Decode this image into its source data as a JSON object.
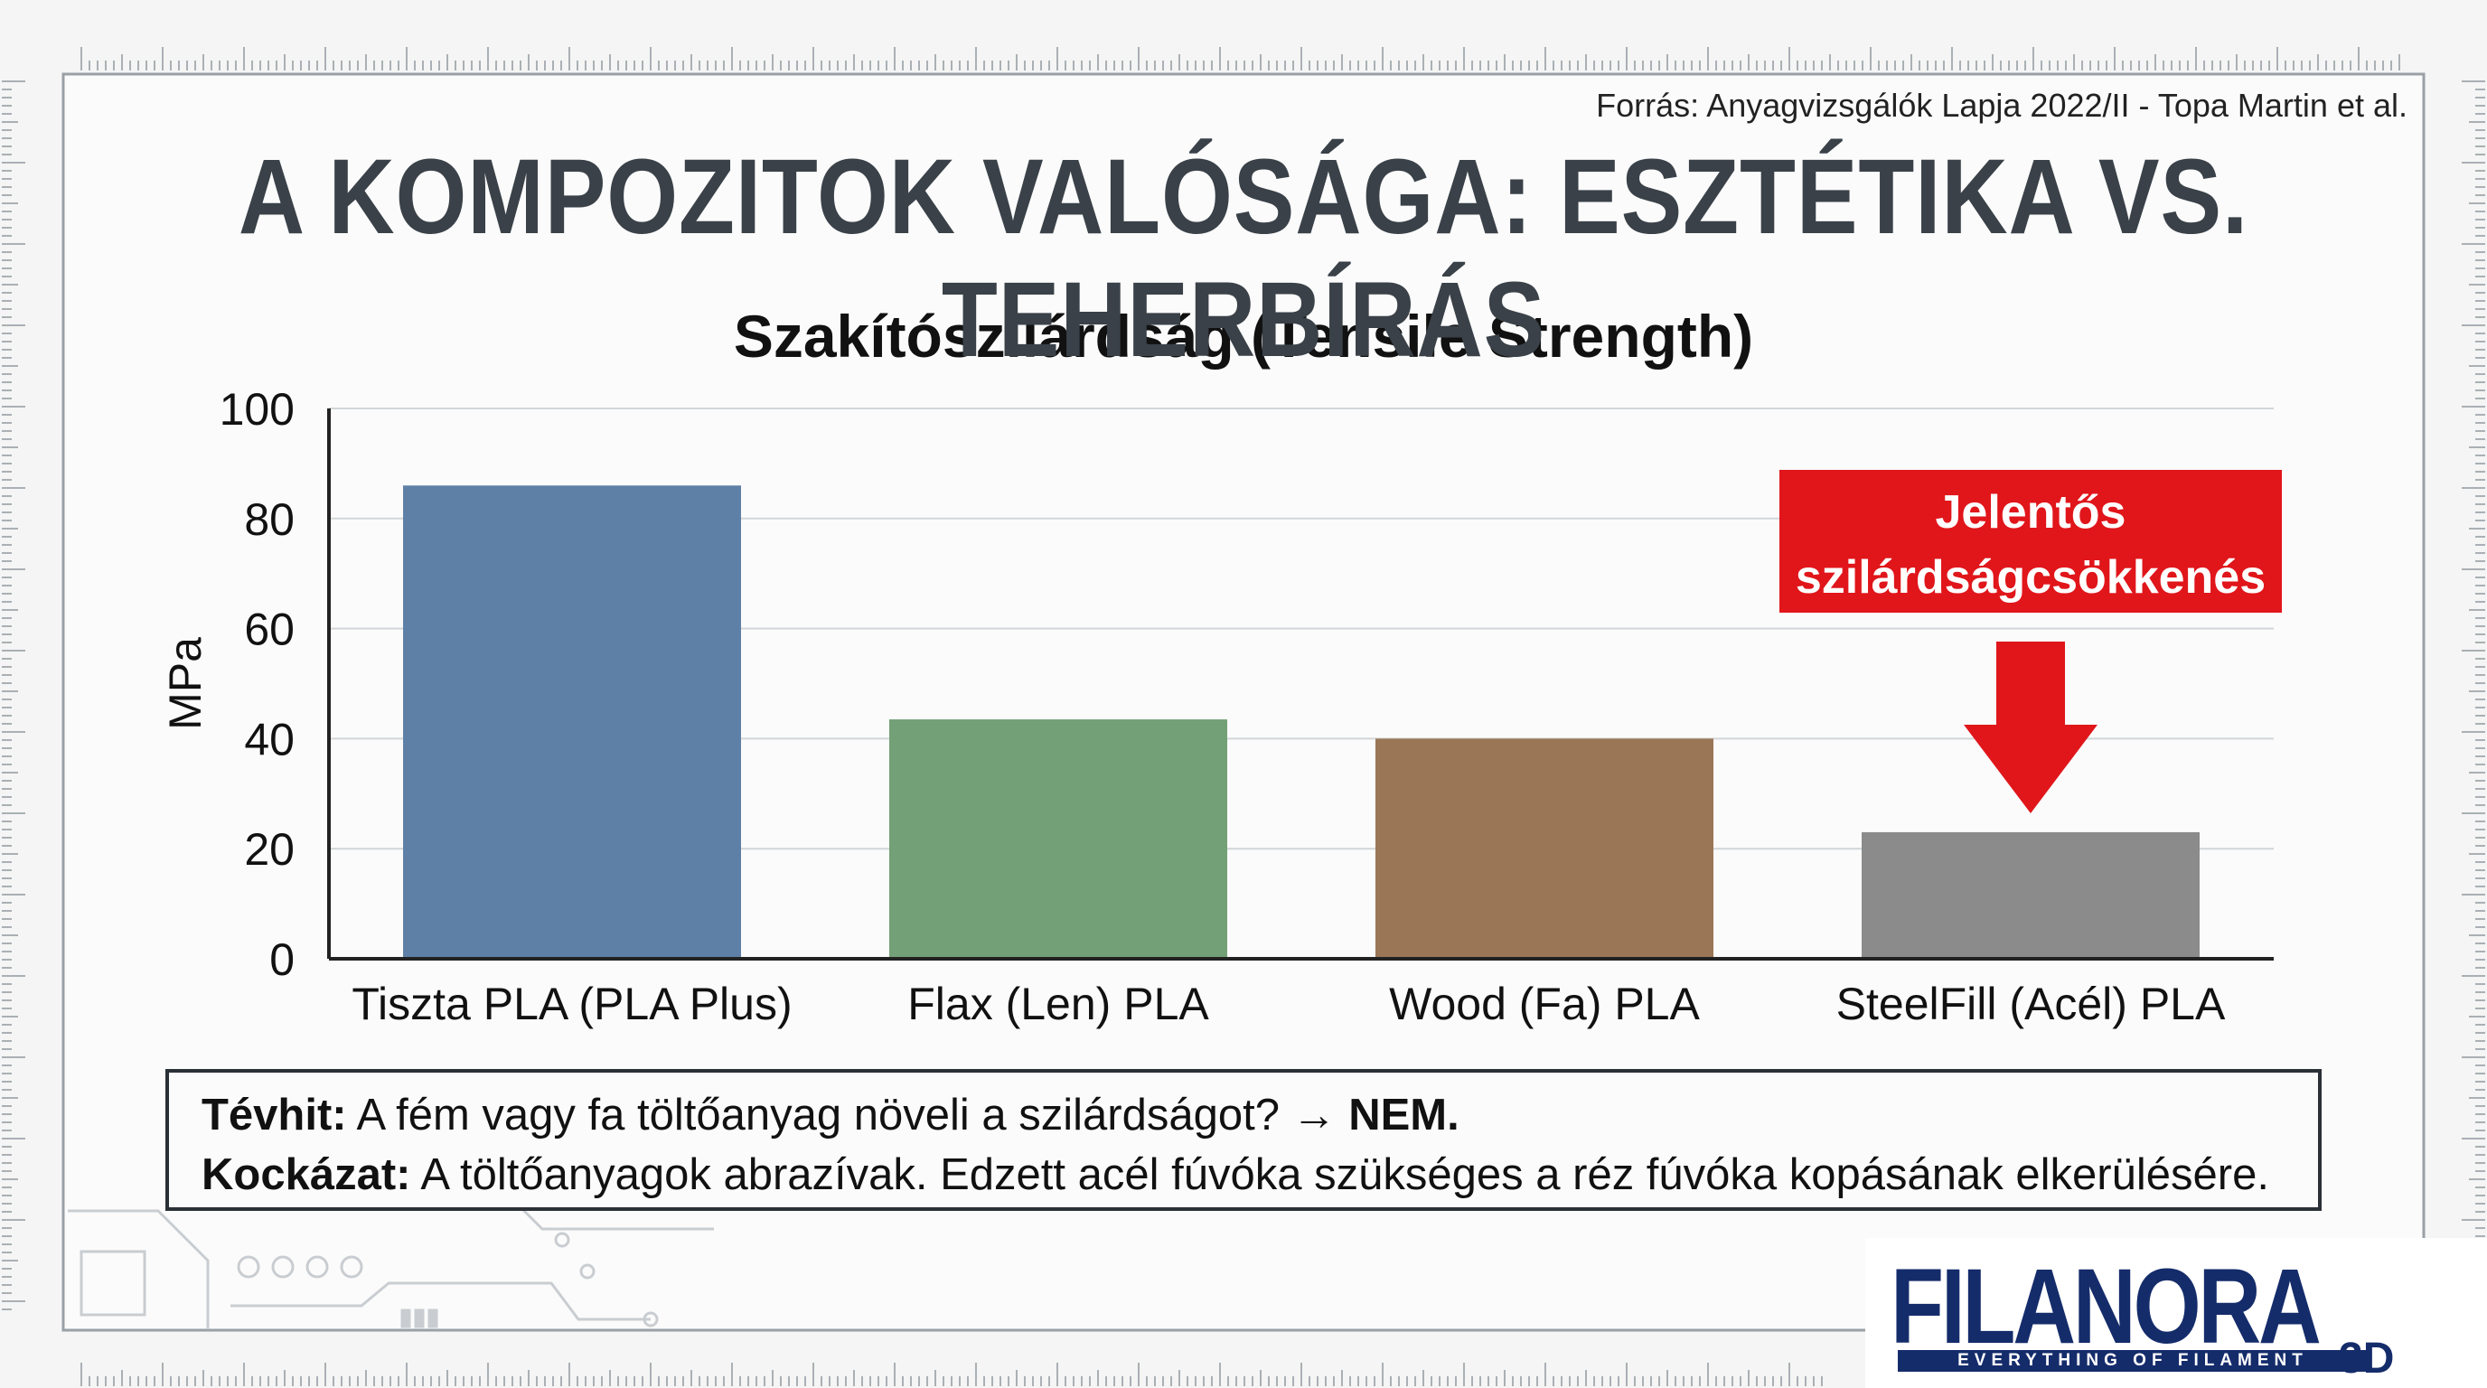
{
  "header": {
    "source": "Forrás: Anyagvizsgálók Lapja 2022/II - Topa Martin et al.",
    "title": "A KOMPOZITOK VALÓSÁGA: ESZTÉTIKA VS. TEHERBÍRÁS"
  },
  "chart_data": {
    "type": "bar",
    "title": "Szakítószilárdság (Tensile Strength)",
    "ylabel": "MPa",
    "xlabel": "",
    "ylim": [
      0,
      100
    ],
    "yticks": [
      "0",
      "20",
      "40",
      "60",
      "80",
      "100"
    ],
    "grid": true,
    "categories": [
      "Tiszta PLA (PLA Plus)",
      "Flax (Len) PLA",
      "Wood (Fa) PLA",
      "SteelFill (Acél) PLA"
    ],
    "values": [
      86,
      43.5,
      40,
      23
    ],
    "colors": [
      "#5f80a6",
      "#73a076",
      "#9a7656",
      "#8b8b8b"
    ],
    "annotation": {
      "lines": [
        "Jelentős",
        "szilárdságcsökkenés"
      ],
      "target_category": "SteelFill (Acél) PLA",
      "color": "#e0161b"
    }
  },
  "info": {
    "myth_label": "Tévhit:",
    "myth_text": " A fém vagy fa töltőanyag növeli a szilárdságot? → ",
    "myth_answer": "NEM.",
    "risk_label": "Kockázat:",
    "risk_text": " A töltőanyagok abrazívak. Edzett acél fúvóka szükséges a réz fúvóka kopásának elkerülésére."
  },
  "logo": {
    "name": "FILANORA",
    "tagline": "EVERYTHING OF FILAMENT",
    "suffix": "3D",
    "color": "#152c6b"
  }
}
